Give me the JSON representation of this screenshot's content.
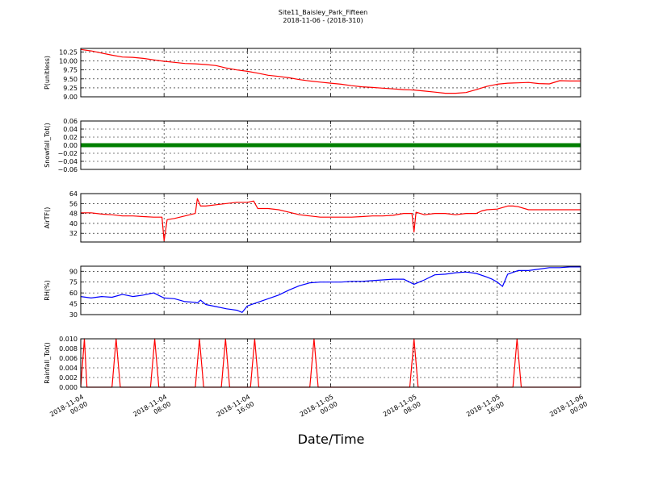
{
  "figure": {
    "title_line1": "Site11_Baisley_Park_Fifteen",
    "title_line2": "2018-11-06 - (2018-310)",
    "xlabel": "Date/Time",
    "x_ticks": [
      {
        "line1": "2018-11-04",
        "line2": "00:00",
        "t": 0
      },
      {
        "line1": "2018-11-04",
        "line2": "08:00",
        "t": 8
      },
      {
        "line1": "2018-11-04",
        "line2": "16:00",
        "t": 16
      },
      {
        "line1": "2018-11-05",
        "line2": "00:00",
        "t": 24
      },
      {
        "line1": "2018-11-05",
        "line2": "08:00",
        "t": 32
      },
      {
        "line1": "2018-11-05",
        "line2": "16:00",
        "t": 40
      },
      {
        "line1": "2018-11-06",
        "line2": "00:00",
        "t": 48
      }
    ]
  },
  "chart_data": [
    {
      "type": "line",
      "ylabel": "P(unitless)",
      "color": "#ff0000",
      "ylim": [
        9.0,
        10.35
      ],
      "yticks": [
        9.0,
        9.25,
        9.5,
        9.75,
        10.0,
        10.25
      ],
      "ytick_labels": [
        "9.00",
        "9.25",
        "9.50",
        "9.75",
        "10.00",
        "10.25"
      ],
      "series": [
        {
          "x": [
            0,
            1,
            2,
            3,
            4,
            5,
            6,
            7,
            8,
            9,
            10,
            11,
            12,
            13,
            14,
            15,
            16,
            17,
            18,
            19,
            20,
            21,
            22,
            23,
            24,
            25,
            26,
            27,
            28,
            29,
            30,
            31,
            32,
            33,
            34,
            35,
            36,
            37,
            38,
            39,
            40,
            41,
            42,
            43,
            44,
            45,
            46,
            47,
            48
          ],
          "values": [
            10.32,
            10.28,
            10.22,
            10.16,
            10.11,
            10.1,
            10.07,
            10.03,
            9.99,
            9.96,
            9.93,
            9.92,
            9.9,
            9.87,
            9.8,
            9.75,
            9.71,
            9.66,
            9.6,
            9.57,
            9.53,
            9.48,
            9.44,
            9.41,
            9.38,
            9.35,
            9.31,
            9.28,
            9.26,
            9.24,
            9.22,
            9.2,
            9.19,
            9.16,
            9.13,
            9.1,
            9.1,
            9.12,
            9.2,
            9.29,
            9.35,
            9.38,
            9.39,
            9.4,
            9.37,
            9.36,
            9.45,
            9.44,
            9.44
          ]
        }
      ]
    },
    {
      "type": "line",
      "ylabel": "Snowfall_Tot()",
      "color": "#008000",
      "ylim": [
        -0.06,
        0.06
      ],
      "yticks": [
        -0.06,
        -0.04,
        -0.02,
        0.0,
        0.02,
        0.04,
        0.06
      ],
      "ytick_labels": [
        "−0.06",
        "−0.04",
        "−0.02",
        "0.00",
        "0.02",
        "0.04",
        "0.06"
      ],
      "series": [
        {
          "x": [
            0,
            48
          ],
          "values": [
            0,
            0
          ]
        }
      ]
    },
    {
      "type": "line",
      "ylabel": "AirTF()",
      "color": "#ff0000",
      "ylim": [
        25,
        64
      ],
      "yticks": [
        32,
        40,
        48,
        56,
        64
      ],
      "ytick_labels": [
        "32",
        "40",
        "48",
        "56",
        "64"
      ],
      "series": [
        {
          "x": [
            0,
            1,
            2,
            3,
            4,
            5,
            6,
            7,
            7.8,
            8.0,
            8.3,
            9,
            10,
            11,
            11.2,
            11.5,
            12,
            13,
            14,
            15,
            16,
            16.6,
            17,
            17.5,
            18,
            19,
            20,
            21,
            22,
            23,
            24,
            25,
            26,
            27,
            28,
            29,
            30,
            31,
            31.8,
            32.0,
            32.2,
            33,
            34,
            35,
            36,
            37,
            38,
            38.5,
            39,
            40,
            41,
            41.5,
            42,
            43,
            44,
            45,
            46,
            47,
            48
          ],
          "values": [
            48.5,
            48.5,
            47.5,
            47,
            46,
            46,
            45.5,
            45,
            45,
            26,
            43,
            44,
            46,
            48,
            60,
            54,
            54,
            55,
            56,
            57,
            57,
            58,
            52,
            52,
            52,
            51,
            49,
            47,
            46,
            45,
            45,
            45,
            45,
            45.5,
            46,
            46,
            46.5,
            48,
            48,
            33,
            49,
            47,
            48,
            48,
            47,
            48,
            48,
            50,
            51,
            51.5,
            54,
            54,
            53.5,
            51,
            51,
            51,
            51,
            51,
            51
          ]
        }
      ]
    },
    {
      "type": "line",
      "ylabel": "RH(%)",
      "color": "#0000ff",
      "ylim": [
        30,
        97
      ],
      "yticks": [
        30,
        45,
        60,
        75,
        90
      ],
      "ytick_labels": [
        "30",
        "45",
        "60",
        "75",
        "90"
      ],
      "series": [
        {
          "x": [
            0,
            1,
            2,
            3,
            4,
            5,
            6,
            7,
            8,
            9,
            10,
            11,
            11.2,
            11.5,
            12,
            13,
            14,
            14.5,
            15,
            15.5,
            16,
            17,
            18,
            19,
            20,
            21,
            22,
            23,
            24,
            25,
            26,
            27,
            28,
            29,
            30,
            31,
            32,
            33,
            34,
            35,
            36,
            37,
            38,
            39,
            39.5,
            40,
            40.5,
            41,
            42,
            43,
            44,
            45,
            46,
            47,
            48
          ],
          "values": [
            55,
            53,
            55,
            54,
            58,
            55,
            57,
            60,
            53,
            52,
            48,
            47,
            46,
            50,
            44,
            41,
            38,
            37,
            36,
            33,
            42,
            47,
            52,
            57,
            64,
            70,
            74,
            75,
            75,
            75,
            76,
            76,
            77,
            78,
            79,
            79,
            72,
            78,
            85,
            86,
            88,
            89,
            87,
            82,
            79,
            75,
            69,
            86,
            91,
            91,
            93,
            95,
            95,
            96,
            96
          ]
        }
      ]
    },
    {
      "type": "line",
      "ylabel": "Rainfall_Tot()",
      "color": "#ff0000",
      "ylim": [
        0.0,
        0.01
      ],
      "yticks": [
        0.0,
        0.002,
        0.004,
        0.006,
        0.008,
        0.01
      ],
      "ytick_labels": [
        "0.000",
        "0.002",
        "0.004",
        "0.006",
        "0.008",
        "0.010"
      ],
      "series": [
        {
          "x": [
            0,
            0.35,
            0.6,
            3.0,
            3.4,
            3.8,
            6.7,
            7.1,
            7.5,
            11.0,
            11.4,
            11.8,
            13.5,
            13.9,
            14.3,
            16.3,
            16.7,
            17.1,
            22.0,
            22.4,
            22.8,
            31.6,
            32.0,
            32.4,
            41.5,
            41.9,
            42.3,
            48
          ],
          "values": [
            0,
            0.01,
            0,
            0,
            0.01,
            0,
            0,
            0.01,
            0,
            0,
            0.01,
            0,
            0,
            0.01,
            0,
            0,
            0.01,
            0,
            0,
            0.01,
            0,
            0,
            0.01,
            0,
            0,
            0.01,
            0,
            0
          ]
        }
      ]
    }
  ]
}
